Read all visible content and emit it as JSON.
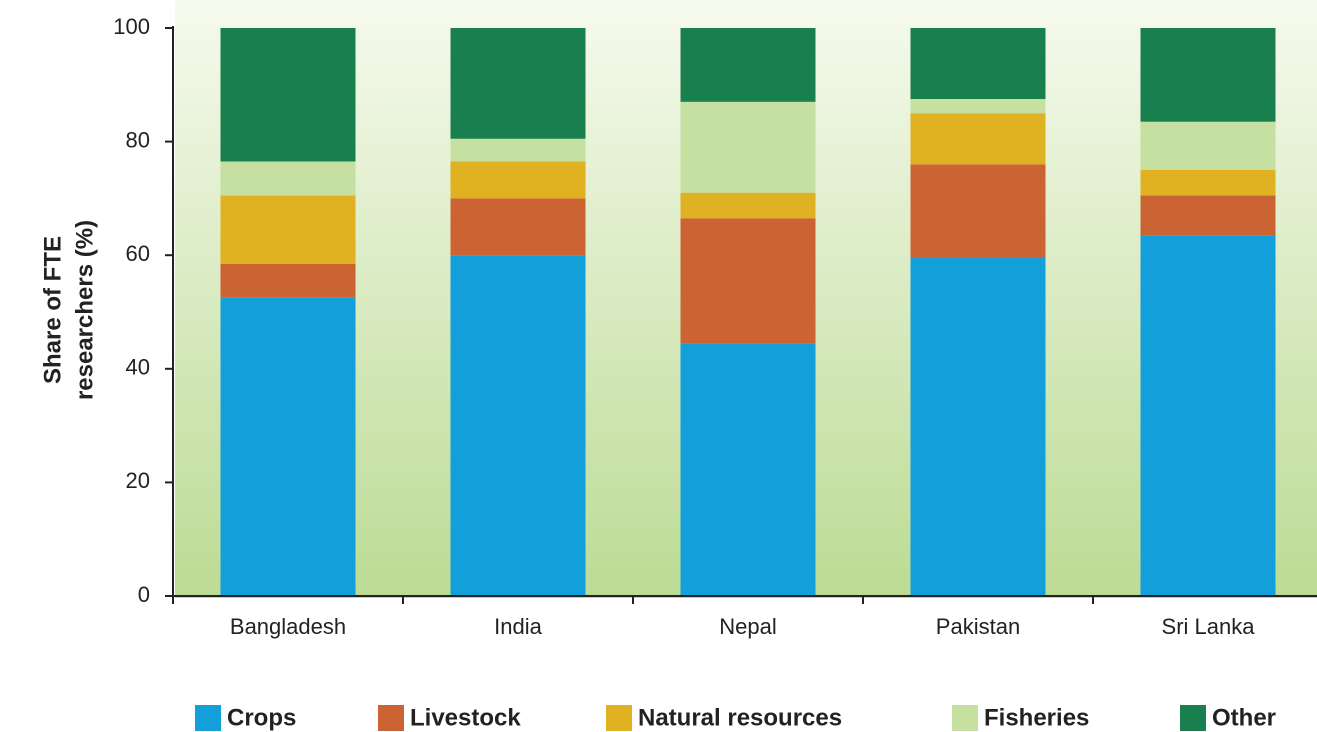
{
  "chart_data": {
    "type": "stacked_bar",
    "ylabel": [
      "Share of  FTE",
      "researchers (%)"
    ],
    "categories": [
      "Bangladesh",
      "India",
      "Nepal",
      "Pakistan",
      "Sri Lanka"
    ],
    "series": [
      {
        "name": "Crops",
        "color": "#139fd9",
        "values": [
          52.5,
          60,
          44.5,
          59.5,
          63.5
        ]
      },
      {
        "name": "Livestock",
        "color": "#cc6332",
        "values": [
          6,
          10,
          22,
          16.5,
          7
        ]
      },
      {
        "name": "Natural resources",
        "color": "#e0b121",
        "values": [
          12,
          6.5,
          4.5,
          9,
          4.5
        ]
      },
      {
        "name": "Fisheries",
        "color": "#c5e0a0",
        "values": [
          6,
          4,
          16,
          2.5,
          8.5
        ]
      },
      {
        "name": "Other",
        "color": "#1a7f4f",
        "values": [
          23.5,
          19.5,
          13,
          12.5,
          16.5
        ]
      }
    ],
    "ylim": [
      0,
      100
    ],
    "yticks": [
      0,
      20,
      40,
      60,
      80,
      100
    ],
    "legend": "bottom"
  }
}
